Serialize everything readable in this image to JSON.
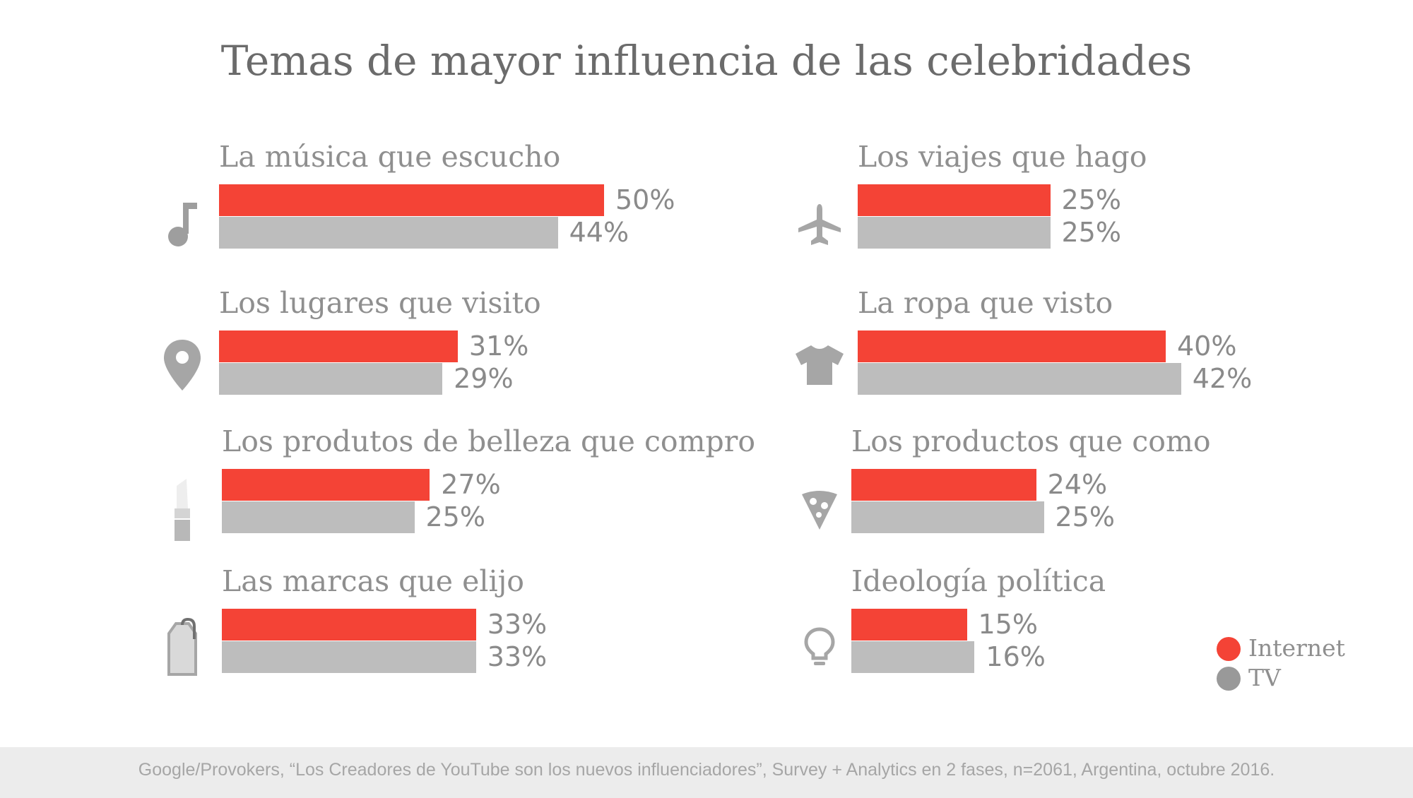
{
  "title": "Temas de mayor influencia de las celebridades",
  "legend": [
    {
      "label": "Internet",
      "color": "#f44336"
    },
    {
      "label": "TV",
      "color": "#999999"
    }
  ],
  "chart_data": {
    "type": "bar",
    "title": "Temas de mayor influencia de las celebridades",
    "categories": [
      "La música que escucho",
      "Los lugares que visito",
      "Los produtos de belleza que compro",
      "Las marcas que elijo",
      "Los viajes que hago",
      "La ropa que visto",
      "Los productos que como",
      "Ideología política"
    ],
    "series": [
      {
        "name": "Internet",
        "color": "#f44336",
        "values": [
          50,
          31,
          27,
          33,
          25,
          40,
          24,
          15
        ]
      },
      {
        "name": "TV",
        "color": "#bdbdbd",
        "values": [
          44,
          29,
          25,
          33,
          25,
          42,
          25,
          16
        ]
      }
    ],
    "unit": "%",
    "legend_position": "bottom-right"
  },
  "groups": [
    {
      "label": "La música que escucho",
      "internet": "50%",
      "tv": "44%",
      "icon": "music-note-icon"
    },
    {
      "label": "Los lugares que visito",
      "internet": "31%",
      "tv": "29%",
      "icon": "location-pin-icon"
    },
    {
      "label": "Los produtos de belleza que compro",
      "internet": "27%",
      "tv": "25%",
      "icon": "lipstick-icon"
    },
    {
      "label": "Las marcas que elijo",
      "internet": "33%",
      "tv": "33%",
      "icon": "price-tag-icon"
    },
    {
      "label": "Los viajes que hago",
      "internet": "25%",
      "tv": "25%",
      "icon": "airplane-icon"
    },
    {
      "label": "La ropa que visto",
      "internet": "40%",
      "tv": "42%",
      "icon": "t-shirt-icon"
    },
    {
      "label": "Los productos que como",
      "internet": "24%",
      "tv": "25%",
      "icon": "pizza-icon"
    },
    {
      "label": "Ideología política",
      "internet": "15%",
      "tv": "16%",
      "icon": "lightbulb-icon"
    }
  ],
  "footer": "Google/Provokers, “Los Creadores de YouTube son los nuevos influenciadores”, Survey + Analytics en 2 fases, n=2061, Argentina, octubre 2016."
}
